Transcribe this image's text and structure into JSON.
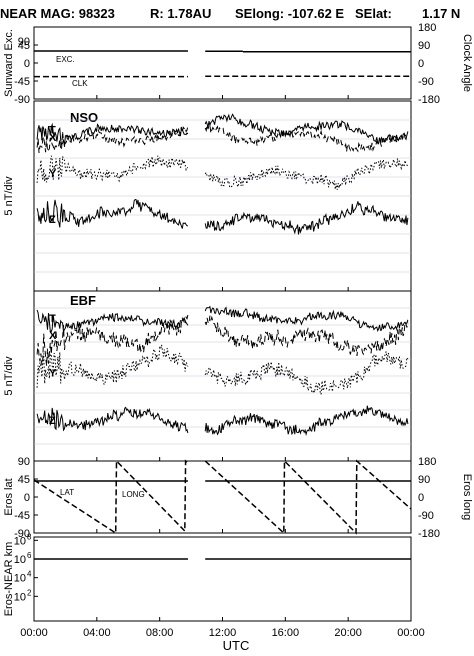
{
  "header": {
    "title": "NEAR MAG: 98323",
    "r_label": "R: 1.78AU",
    "selong_label": "SElong: -107.62 E",
    "selat_label": "SElat:",
    "selat_value": "1.17 N"
  },
  "chart_data": [
    {
      "panel": "sunward-clock",
      "type": "line",
      "ylabel": "Sunward Exc.",
      "ylabel_right": "Clock Angle",
      "yticks_left": [
        "45",
        "0",
        "-45",
        "-90"
      ],
      "yticks_top_left": "90",
      "yticks_right": [
        "180",
        "90",
        "0",
        "-90",
        "-180"
      ],
      "ylim": [
        -90,
        90
      ],
      "ylim_right": [
        -180,
        180
      ],
      "x_hours": [
        0,
        24
      ],
      "gap_hours": [
        9.8,
        10.9
      ],
      "series": [
        {
          "name": "EXC.",
          "style": "solid",
          "segments": [
            [
              0.0,
              9.8,
              30.0
            ],
            [
              10.9,
              13.3,
              29.5
            ],
            [
              13.3,
              24.0,
              28.0
            ]
          ]
        },
        {
          "name": "CLK",
          "style": "dashed",
          "segments": [
            [
              0.0,
              9.8,
              -34.0
            ],
            [
              10.9,
              24.0,
              -33.0
            ]
          ]
        }
      ]
    },
    {
      "panel": "nso",
      "type": "line",
      "title": "NSO",
      "ylabel": "5 nT/div",
      "series": [
        {
          "name": "T",
          "style": "solid",
          "base": 0.15,
          "amp": 0.045
        },
        {
          "name": "X",
          "style": "dashed",
          "base": 0.19,
          "amp": 0.045
        },
        {
          "name": "Y",
          "style": "dotted",
          "base": 0.38,
          "amp": 0.06
        },
        {
          "name": "Z",
          "style": "solid",
          "base": 0.62,
          "amp": 0.06
        }
      ]
    },
    {
      "panel": "ebf",
      "type": "line",
      "title": "EBF",
      "ylabel": "5 nT/div",
      "series": [
        {
          "name": "T",
          "style": "solid",
          "base": 0.16,
          "amp": 0.05
        },
        {
          "name": "X",
          "style": "dashed",
          "base": 0.26,
          "amp": 0.09
        },
        {
          "name": "Y",
          "style": "dotted",
          "base": 0.48,
          "amp": 0.09
        },
        {
          "name": "Z",
          "style": "solid",
          "base": 0.76,
          "amp": 0.06
        }
      ]
    },
    {
      "panel": "eros-angles",
      "type": "line",
      "ylabel": "Eros lat",
      "ylabel_right": "Eros long",
      "yticks_left": [
        "90",
        "45",
        "0",
        "-45",
        "-90"
      ],
      "yticks_right": [
        "180",
        "90",
        "0",
        "-90",
        "-180"
      ],
      "ylim": [
        -90,
        90
      ],
      "series": [
        {
          "name": "LAT",
          "style": "solid",
          "value": 40
        },
        {
          "name": "LONG",
          "style": "dashed",
          "points": [
            [
              0.0,
              85
            ],
            [
              5.2,
              -180
            ],
            [
              5.25,
              180
            ],
            [
              9.6,
              -170
            ],
            [
              9.65,
              180
            ],
            [
              9.8,
              170
            ],
            [
              10.9,
              180
            ],
            [
              15.9,
              -180
            ],
            [
              15.95,
              180
            ],
            [
              20.5,
              -180
            ],
            [
              20.55,
              180
            ],
            [
              24.0,
              -60
            ]
          ]
        }
      ]
    },
    {
      "panel": "eros-near-distance",
      "type": "line",
      "ylabel": "Eros-NEAR km",
      "yscale": "log",
      "yticks": [
        "10^8",
        "10^6",
        "10^4",
        "10^2"
      ],
      "ylim": [
        1,
        100000000
      ],
      "series": [
        {
          "name": "distance",
          "style": "solid",
          "segments": [
            [
              0.0,
              9.8,
              1000000
            ],
            [
              10.9,
              24.0,
              1000000
            ]
          ]
        }
      ]
    }
  ],
  "x_axis": {
    "label": "UTC",
    "ticks": [
      "00:00",
      "04:00",
      "08:00",
      "12:00",
      "16:00",
      "20:00",
      "00:00"
    ],
    "tick_hours": [
      0,
      4,
      8,
      12,
      16,
      20,
      24
    ]
  },
  "panel_labels": {
    "exc": "EXC.",
    "clk": "CLK",
    "lat": "LAT",
    "long": "LONG"
  }
}
